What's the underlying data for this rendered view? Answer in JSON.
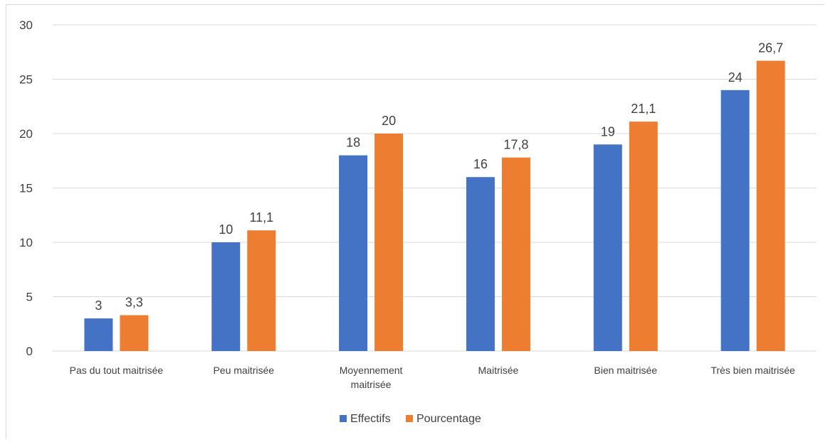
{
  "chart_data": {
    "type": "bar",
    "categories": [
      [
        "Pas du tout maitrisée"
      ],
      [
        "Peu maitrisée"
      ],
      [
        "Moyennement",
        "maitrisée"
      ],
      [
        "Maitrisée"
      ],
      [
        "Bien maitrisée"
      ],
      [
        "Très bien maitrisée"
      ]
    ],
    "series": [
      {
        "name": "Effectifs",
        "color": "#4472C4",
        "values": [
          3,
          10,
          18,
          16,
          19,
          24
        ],
        "labels": [
          "3",
          "10",
          "18",
          "16",
          "19",
          "24"
        ]
      },
      {
        "name": "Pourcentage",
        "color": "#ED7D31",
        "values": [
          3.3,
          11.1,
          20,
          17.8,
          21.1,
          26.7
        ],
        "labels": [
          "3,3",
          "11,1",
          "20",
          "17,8",
          "21,1",
          "26,7"
        ]
      }
    ],
    "ylim": [
      0,
      30
    ],
    "yticks": [
      0,
      5,
      10,
      15,
      20,
      25,
      30
    ],
    "grid": true,
    "legend_position": "bottom"
  }
}
